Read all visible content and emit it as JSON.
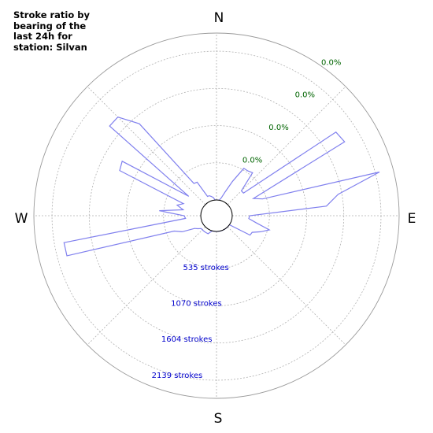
{
  "chart_data": {
    "type": "polar-area",
    "title": "Stroke ratio by bearing of the last 24h for station: Silvan",
    "directions": [
      "N",
      "E",
      "S",
      "W"
    ],
    "ratio_ring_labels": [
      "0.0%",
      "0.0%",
      "0.0%",
      "0.0%"
    ],
    "stroke_ring_labels": [
      "535 strokes",
      "1070 strokes",
      "1604 strokes",
      "2139 strokes"
    ],
    "ring_values": [
      535,
      1070,
      1604,
      2139
    ],
    "r_max": 2400,
    "grid": true,
    "colors": {
      "series_line": "#8080ee",
      "ratio_labels": "#006400",
      "count_labels": "#0000cc",
      "grid": "#b0b0b0"
    },
    "series": [
      {
        "bearing_deg": [
          0,
          5,
          10,
          15,
          20,
          25,
          30,
          35,
          40,
          45,
          50,
          55,
          60,
          65,
          70,
          75,
          80,
          85,
          90,
          95,
          100,
          105,
          110,
          115,
          120,
          125,
          130,
          135,
          140,
          145,
          150,
          155,
          160,
          165,
          170,
          175,
          180,
          185,
          190,
          195,
          200,
          205,
          210,
          215,
          220,
          225,
          230,
          235,
          240,
          245,
          250,
          255,
          260,
          265,
          270,
          275,
          280,
          285,
          290,
          295,
          300,
          305,
          310,
          315,
          320,
          325,
          330,
          335,
          340,
          345,
          350,
          355
        ],
        "strokes": [
          0,
          0,
          0,
          40,
          140,
          320,
          560,
          560,
          580,
          280,
          280,
          1870,
          1900,
          360,
          480,
          2200,
          1550,
          1360,
          250,
          240,
          350,
          560,
          450,
          340,
          330,
          0,
          0,
          0,
          0,
          0,
          0,
          0,
          0,
          0,
          0,
          0,
          0,
          0,
          0,
          0,
          20,
          60,
          60,
          60,
          60,
          60,
          60,
          100,
          140,
          320,
          420,
          2000,
          2000,
          220,
          240,
          600,
          260,
          360,
          280,
          1310,
          1340,
          260,
          1780,
          1780,
          1500,
          340,
          330,
          80,
          80,
          60,
          40,
          0
        ]
      }
    ]
  }
}
